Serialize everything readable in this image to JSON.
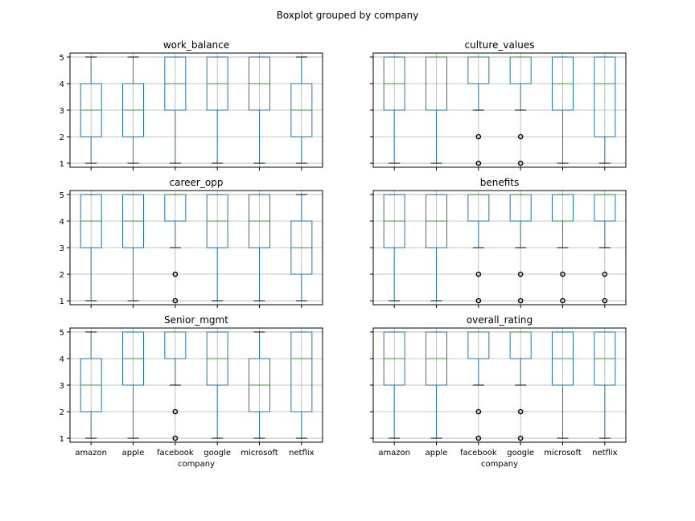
{
  "figure_title": "Boxplot grouped by company",
  "xlabel": "company",
  "colors": {
    "box": "#1f77b4",
    "median": "#2ca02c",
    "grid": "#b0b0b0",
    "outlier": "#000000",
    "axes": "#000000"
  },
  "chart_data": [
    {
      "type": "box",
      "title": "work_balance",
      "ylim": [
        0.85,
        5.15
      ],
      "yticks": [
        1,
        2,
        3,
        4,
        5
      ],
      "categories": [
        "amazon",
        "apple",
        "facebook",
        "google",
        "microsoft",
        "netflix"
      ],
      "boxes": [
        {
          "q1": 2,
          "median": 3,
          "q3": 4,
          "whisker_low": 1,
          "whisker_high": 5,
          "outliers": []
        },
        {
          "q1": 2,
          "median": 3,
          "q3": 4,
          "whisker_low": 1,
          "whisker_high": 5,
          "outliers": []
        },
        {
          "q1": 3,
          "median": 4,
          "q3": 5,
          "whisker_low": 1,
          "whisker_high": 5,
          "outliers": []
        },
        {
          "q1": 3,
          "median": 4,
          "q3": 5,
          "whisker_low": 1,
          "whisker_high": 5,
          "outliers": []
        },
        {
          "q1": 3,
          "median": 4,
          "q3": 5,
          "whisker_low": 1,
          "whisker_high": 5,
          "outliers": []
        },
        {
          "q1": 2,
          "median": 3,
          "q3": 4,
          "whisker_low": 1,
          "whisker_high": 5,
          "outliers": []
        }
      ]
    },
    {
      "type": "box",
      "title": "culture_values",
      "ylim": [
        0.85,
        5.15
      ],
      "yticks": [
        1,
        2,
        3,
        4,
        5
      ],
      "categories": [
        "amazon",
        "apple",
        "facebook",
        "google",
        "microsoft",
        "netflix"
      ],
      "boxes": [
        {
          "q1": 3,
          "median": 4,
          "q3": 5,
          "whisker_low": 1,
          "whisker_high": 5,
          "outliers": []
        },
        {
          "q1": 3,
          "median": 5,
          "q3": 5,
          "whisker_low": 1,
          "whisker_high": 5,
          "outliers": []
        },
        {
          "q1": 4,
          "median": 5,
          "q3": 5,
          "whisker_low": 3,
          "whisker_high": 5,
          "outliers": [
            2,
            1
          ]
        },
        {
          "q1": 4,
          "median": 5,
          "q3": 5,
          "whisker_low": 3,
          "whisker_high": 5,
          "outliers": [
            2,
            1
          ]
        },
        {
          "q1": 3,
          "median": 4,
          "q3": 5,
          "whisker_low": 1,
          "whisker_high": 5,
          "outliers": []
        },
        {
          "q1": 2,
          "median": 4,
          "q3": 5,
          "whisker_low": 1,
          "whisker_high": 5,
          "outliers": []
        }
      ]
    },
    {
      "type": "box",
      "title": "career_opp",
      "ylim": [
        0.85,
        5.15
      ],
      "yticks": [
        1,
        2,
        3,
        4,
        5
      ],
      "categories": [
        "amazon",
        "apple",
        "facebook",
        "google",
        "microsoft",
        "netflix"
      ],
      "boxes": [
        {
          "q1": 3,
          "median": 4,
          "q3": 5,
          "whisker_low": 1,
          "whisker_high": 5,
          "outliers": []
        },
        {
          "q1": 3,
          "median": 4,
          "q3": 5,
          "whisker_low": 1,
          "whisker_high": 5,
          "outliers": []
        },
        {
          "q1": 4,
          "median": 5,
          "q3": 5,
          "whisker_low": 3,
          "whisker_high": 5,
          "outliers": [
            2,
            1
          ]
        },
        {
          "q1": 3,
          "median": 4,
          "q3": 5,
          "whisker_low": 1,
          "whisker_high": 5,
          "outliers": []
        },
        {
          "q1": 3,
          "median": 4,
          "q3": 5,
          "whisker_low": 1,
          "whisker_high": 5,
          "outliers": []
        },
        {
          "q1": 2,
          "median": 3,
          "q3": 4,
          "whisker_low": 1,
          "whisker_high": 5,
          "outliers": []
        }
      ]
    },
    {
      "type": "box",
      "title": "benefits",
      "ylim": [
        0.85,
        5.15
      ],
      "yticks": [
        1,
        2,
        3,
        4,
        5
      ],
      "categories": [
        "amazon",
        "apple",
        "facebook",
        "google",
        "microsoft",
        "netflix"
      ],
      "boxes": [
        {
          "q1": 3,
          "median": 4,
          "q3": 5,
          "whisker_low": 1,
          "whisker_high": 5,
          "outliers": []
        },
        {
          "q1": 3,
          "median": 4,
          "q3": 5,
          "whisker_low": 1,
          "whisker_high": 5,
          "outliers": []
        },
        {
          "q1": 4,
          "median": 5,
          "q3": 5,
          "whisker_low": 3,
          "whisker_high": 5,
          "outliers": [
            2,
            1
          ]
        },
        {
          "q1": 4,
          "median": 5,
          "q3": 5,
          "whisker_low": 3,
          "whisker_high": 5,
          "outliers": [
            2,
            1
          ]
        },
        {
          "q1": 4,
          "median": 4,
          "q3": 5,
          "whisker_low": 3,
          "whisker_high": 5,
          "outliers": [
            2,
            1
          ]
        },
        {
          "q1": 4,
          "median": 5,
          "q3": 5,
          "whisker_low": 3,
          "whisker_high": 5,
          "outliers": [
            2,
            1
          ]
        }
      ]
    },
    {
      "type": "box",
      "title": "Senior_mgmt",
      "ylim": [
        0.85,
        5.15
      ],
      "yticks": [
        1,
        2,
        3,
        4,
        5
      ],
      "categories": [
        "amazon",
        "apple",
        "facebook",
        "google",
        "microsoft",
        "netflix"
      ],
      "boxes": [
        {
          "q1": 2,
          "median": 3,
          "q3": 4,
          "whisker_low": 1,
          "whisker_high": 5,
          "outliers": []
        },
        {
          "q1": 3,
          "median": 4,
          "q3": 5,
          "whisker_low": 1,
          "whisker_high": 5,
          "outliers": []
        },
        {
          "q1": 4,
          "median": 5,
          "q3": 5,
          "whisker_low": 3,
          "whisker_high": 5,
          "outliers": [
            2,
            1
          ]
        },
        {
          "q1": 3,
          "median": 4,
          "q3": 5,
          "whisker_low": 1,
          "whisker_high": 5,
          "outliers": []
        },
        {
          "q1": 2,
          "median": 3,
          "q3": 4,
          "whisker_low": 1,
          "whisker_high": 5,
          "outliers": []
        },
        {
          "q1": 2,
          "median": 4,
          "q3": 5,
          "whisker_low": 1,
          "whisker_high": 5,
          "outliers": []
        }
      ]
    },
    {
      "type": "box",
      "title": "overall_rating",
      "ylim": [
        0.85,
        5.15
      ],
      "yticks": [
        1,
        2,
        3,
        4,
        5
      ],
      "categories": [
        "amazon",
        "apple",
        "facebook",
        "google",
        "microsoft",
        "netflix"
      ],
      "boxes": [
        {
          "q1": 3,
          "median": 4,
          "q3": 5,
          "whisker_low": 1,
          "whisker_high": 5,
          "outliers": []
        },
        {
          "q1": 3,
          "median": 4,
          "q3": 5,
          "whisker_low": 1,
          "whisker_high": 5,
          "outliers": []
        },
        {
          "q1": 4,
          "median": 5,
          "q3": 5,
          "whisker_low": 3,
          "whisker_high": 5,
          "outliers": [
            2,
            1
          ]
        },
        {
          "q1": 4,
          "median": 5,
          "q3": 5,
          "whisker_low": 3,
          "whisker_high": 5,
          "outliers": [
            2,
            1
          ]
        },
        {
          "q1": 3,
          "median": 4,
          "q3": 5,
          "whisker_low": 1,
          "whisker_high": 5,
          "outliers": []
        },
        {
          "q1": 3,
          "median": 4,
          "q3": 5,
          "whisker_low": 1,
          "whisker_high": 5,
          "outliers": []
        }
      ]
    }
  ]
}
